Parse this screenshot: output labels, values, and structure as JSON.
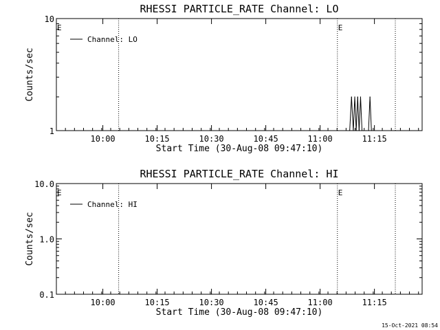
{
  "footer": {
    "timestamp": "15-Oct-2021 08:54"
  },
  "chart_data": [
    {
      "type": "line",
      "title": "RHESSI PARTICLE_RATE Channel: LO",
      "xlabel": "Start Time (30-Aug-08 09:47:10)",
      "ylabel": "Counts/sec",
      "x_unit": "minutes after 09:47:10 (30-Aug-08)",
      "xlim": [
        0,
        101
      ],
      "ylim": [
        1,
        10
      ],
      "yscale": "log",
      "x_ticks": [
        {
          "label": "10:00",
          "value": 12.83
        },
        {
          "label": "10:15",
          "value": 27.83
        },
        {
          "label": "10:30",
          "value": 42.83
        },
        {
          "label": "10:45",
          "value": 57.83
        },
        {
          "label": "11:00",
          "value": 72.83
        },
        {
          "label": "11:15",
          "value": 87.83
        }
      ],
      "y_ticks": [
        {
          "label": "1",
          "value": 1
        },
        {
          "label": "10",
          "value": 10
        }
      ],
      "legend": {
        "position": "top-left",
        "entries": [
          "Channel: LO"
        ]
      },
      "dotted_lines_x": [
        17.2,
        77.6,
        93.6
      ],
      "markers": [
        {
          "label": "E",
          "x": 0
        },
        {
          "label": "E",
          "x": 77.6
        }
      ],
      "series": [
        {
          "name": "Channel: LO",
          "x": [
            81.0,
            81.5,
            82.0,
            82.4,
            82.8,
            83.2,
            83.6,
            84.0,
            84.4,
            84.8,
            85.5,
            86.2,
            86.6,
            87.0
          ],
          "y": [
            1,
            2,
            1,
            2,
            1,
            2,
            1,
            2,
            1,
            1,
            1,
            1,
            2,
            1
          ]
        }
      ]
    },
    {
      "type": "line",
      "title": "RHESSI PARTICLE_RATE Channel: HI",
      "xlabel": "Start Time (30-Aug-08 09:47:10)",
      "ylabel": "Counts/sec",
      "x_unit": "minutes after 09:47:10 (30-Aug-08)",
      "xlim": [
        0,
        101
      ],
      "ylim": [
        0.1,
        10
      ],
      "yscale": "log",
      "x_ticks": [
        {
          "label": "10:00",
          "value": 12.83
        },
        {
          "label": "10:15",
          "value": 27.83
        },
        {
          "label": "10:30",
          "value": 42.83
        },
        {
          "label": "10:45",
          "value": 57.83
        },
        {
          "label": "11:00",
          "value": 72.83
        },
        {
          "label": "11:15",
          "value": 87.83
        }
      ],
      "y_ticks": [
        {
          "label": "0.1",
          "value": 0.1
        },
        {
          "label": "1.0",
          "value": 1
        },
        {
          "label": "10.0",
          "value": 10
        }
      ],
      "legend": {
        "position": "top-left",
        "entries": [
          "Channel: HI"
        ]
      },
      "dotted_lines_x": [
        17.2,
        77.6,
        93.6
      ],
      "markers": [
        {
          "label": "E",
          "x": 0
        },
        {
          "label": "E",
          "x": 77.6
        }
      ],
      "series": [
        {
          "name": "Channel: HI",
          "x": [],
          "y": []
        }
      ]
    }
  ]
}
